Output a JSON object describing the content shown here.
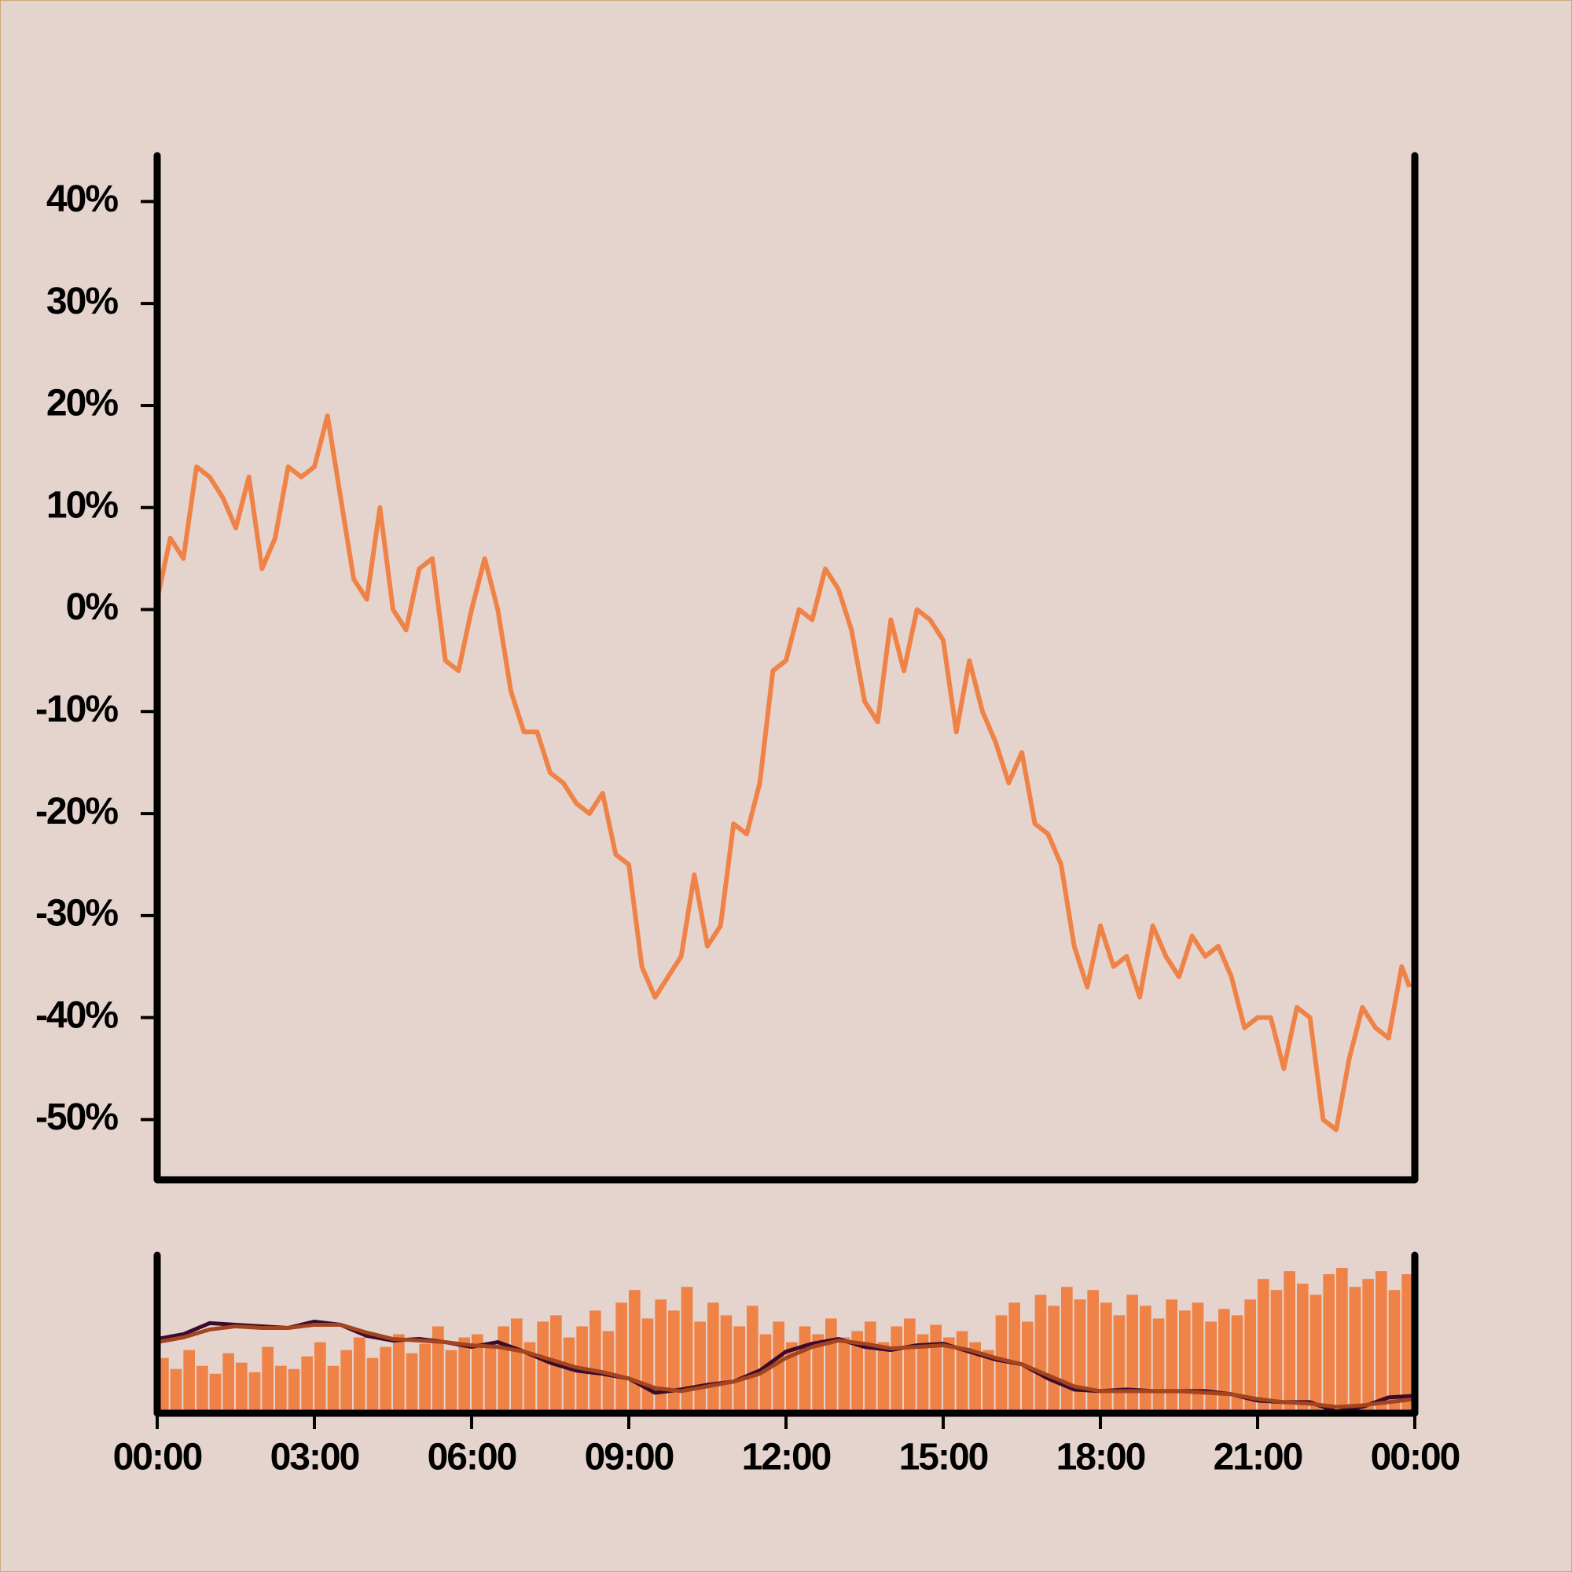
{
  "chart_data": [
    {
      "type": "line",
      "color": "#ef8347",
      "x": [
        0,
        0.25,
        0.5,
        0.75,
        1,
        1.25,
        1.5,
        1.75,
        2,
        2.25,
        2.5,
        2.75,
        3,
        3.25,
        3.5,
        3.75,
        4,
        4.25,
        4.5,
        4.75,
        5,
        5.25,
        5.5,
        5.75,
        6,
        6.25,
        6.5,
        6.75,
        7,
        7.25,
        7.5,
        7.75,
        8,
        8.25,
        8.5,
        8.75,
        9,
        9.25,
        9.5,
        9.75,
        10,
        10.25,
        10.5,
        10.75,
        11,
        11.25,
        11.5,
        11.75,
        12,
        12.25,
        12.5,
        12.75,
        13,
        13.25,
        13.5,
        13.75,
        14,
        14.25,
        14.5,
        14.75,
        15,
        15.25,
        15.5,
        15.75,
        16,
        16.25,
        16.5,
        16.75,
        17,
        17.25,
        17.5,
        17.75,
        18,
        18.25,
        18.5,
        18.75,
        19,
        19.25,
        19.5,
        19.75,
        20,
        20.25,
        20.5,
        20.75,
        21,
        21.25,
        21.5,
        21.75,
        22,
        22.25,
        22.5,
        22.75,
        23,
        23.25,
        23.5,
        23.75,
        23.9
      ],
      "values": [
        1,
        7,
        5,
        14,
        13,
        11,
        8,
        13,
        4,
        7,
        14,
        13,
        14,
        19,
        11,
        3,
        1,
        10,
        0,
        -2,
        4,
        5,
        -5,
        -6,
        0,
        5,
        0,
        -8,
        -12,
        -12,
        -16,
        -17,
        -19,
        -20,
        -18,
        -24,
        -25,
        -35,
        -38,
        -36,
        -34,
        -26,
        -33,
        -31,
        -21,
        -22,
        -17,
        -6,
        -5,
        0,
        -1,
        4,
        2,
        -2,
        -9,
        -11,
        -1,
        -6,
        0,
        -1,
        -3,
        -12,
        -5,
        -10,
        -13,
        -17,
        -14,
        -21,
        -22,
        -25,
        -33,
        -37,
        -31,
        -35,
        -34,
        -38,
        -31,
        -34,
        -36,
        -32,
        -34,
        -33,
        -36,
        -41,
        -40,
        -40,
        -45,
        -39,
        -40,
        -50,
        -51,
        -44,
        -39,
        -41,
        -42,
        -35,
        -37
      ],
      "xlim": [
        0,
        24
      ],
      "ylim": [
        -55.9,
        44.5
      ],
      "yticks": [
        {
          "value": 40,
          "label": "40%"
        },
        {
          "value": 30,
          "label": "30%"
        },
        {
          "value": 20,
          "label": "20%"
        },
        {
          "value": 10,
          "label": "10%"
        },
        {
          "value": 0,
          "label": "0%"
        },
        {
          "value": -10,
          "label": "-10%"
        },
        {
          "value": -20,
          "label": "-20%"
        },
        {
          "value": -30,
          "label": "-30%"
        },
        {
          "value": -40,
          "label": "-40%"
        },
        {
          "value": -50,
          "label": "-50%"
        }
      ]
    },
    {
      "type": "bar",
      "color": "#ef8347",
      "x": [
        0,
        0.25,
        0.5,
        0.75,
        1,
        1.25,
        1.5,
        1.75,
        2,
        2.25,
        2.5,
        2.75,
        3,
        3.25,
        3.5,
        3.75,
        4,
        4.25,
        4.5,
        4.75,
        5,
        5.25,
        5.5,
        5.75,
        6,
        6.25,
        6.5,
        6.75,
        7,
        7.25,
        7.5,
        7.75,
        8,
        8.25,
        8.5,
        8.75,
        9,
        9.25,
        9.5,
        9.75,
        10,
        10.25,
        10.5,
        10.75,
        11,
        11.25,
        11.5,
        11.75,
        12,
        12.25,
        12.5,
        12.75,
        13,
        13.25,
        13.5,
        13.75,
        14,
        14.25,
        14.5,
        14.75,
        15,
        15.25,
        15.5,
        15.75,
        16,
        16.25,
        16.5,
        16.75,
        17,
        17.25,
        17.5,
        17.75,
        18,
        18.25,
        18.5,
        18.75,
        19,
        19.25,
        19.5,
        19.75,
        20,
        20.25,
        20.5,
        20.75,
        21,
        21.25,
        21.5,
        21.75,
        22,
        22.25,
        22.5,
        22.75,
        23,
        23.25,
        23.5,
        23.75
      ],
      "values": [
        35,
        28,
        40,
        30,
        25,
        38,
        32,
        26,
        42,
        30,
        28,
        36,
        45,
        30,
        40,
        48,
        35,
        42,
        50,
        38,
        44,
        55,
        40,
        48,
        50,
        42,
        55,
        60,
        45,
        58,
        62,
        48,
        55,
        65,
        52,
        70,
        78,
        60,
        72,
        65,
        80,
        58,
        70,
        62,
        55,
        68,
        50,
        58,
        45,
        55,
        50,
        60,
        48,
        52,
        58,
        45,
        55,
        60,
        50,
        56,
        48,
        52,
        45,
        40,
        62,
        70,
        58,
        75,
        68,
        80,
        72,
        78,
        70,
        62,
        75,
        68,
        60,
        72,
        65,
        70,
        58,
        66,
        62,
        72,
        85,
        78,
        90,
        82,
        75,
        88,
        92,
        80,
        85,
        90,
        78,
        88
      ],
      "bar_width": 0.25,
      "series": [
        {
          "color": "#3a0b2c",
          "x": [
            0,
            0.5,
            1,
            1.5,
            2,
            2.5,
            3,
            3.5,
            4,
            4.5,
            5,
            5.5,
            6,
            6.5,
            7,
            7.5,
            8,
            8.5,
            9,
            9.5,
            10,
            10.5,
            11,
            11.5,
            12,
            12.5,
            13,
            13.5,
            14,
            14.5,
            15,
            15.5,
            16,
            16.5,
            17,
            17.5,
            18,
            18.5,
            19,
            19.5,
            20,
            20.5,
            21,
            21.5,
            22,
            22.5,
            23,
            23.5,
            24
          ],
          "values": [
            47,
            50,
            57,
            56,
            55,
            54,
            58,
            56,
            49,
            46,
            47,
            45,
            42,
            45,
            39,
            32,
            27,
            25,
            22,
            13,
            15,
            18,
            20,
            27,
            39,
            44,
            47,
            42,
            40,
            43,
            44,
            39,
            34,
            31,
            22,
            15,
            14,
            15,
            14,
            14,
            14,
            12,
            8,
            7,
            7,
            1,
            4,
            10,
            11
          ]
        },
        {
          "color": "#a4451f",
          "x": [
            0,
            0.5,
            1,
            1.5,
            2,
            2.5,
            3,
            3.5,
            4,
            4.5,
            5,
            5.5,
            6,
            6.5,
            7,
            7.5,
            8,
            8.5,
            9,
            9.5,
            10,
            10.5,
            11,
            11.5,
            12,
            12.5,
            13,
            13.5,
            14,
            14.5,
            15,
            15.5,
            16,
            16.5,
            17,
            17.5,
            18,
            18.5,
            19,
            19.5,
            20,
            20.5,
            21,
            21.5,
            22,
            22.5,
            23,
            23.5,
            24
          ],
          "values": [
            45,
            48,
            53,
            55,
            54,
            54,
            56,
            56,
            51,
            47,
            46,
            45,
            43,
            42,
            39,
            34,
            29,
            26,
            22,
            16,
            14,
            17,
            20,
            25,
            35,
            42,
            46,
            44,
            41,
            42,
            43,
            40,
            35,
            31,
            24,
            17,
            14,
            14,
            14,
            14,
            13,
            12,
            9,
            7,
            6,
            4,
            5,
            7,
            9
          ]
        }
      ],
      "xlim": [
        0,
        24
      ],
      "ylim": [
        0,
        100
      ],
      "xticks": [
        {
          "value": 0,
          "label": "00:00"
        },
        {
          "value": 3,
          "label": "03:00"
        },
        {
          "value": 6,
          "label": "06:00"
        },
        {
          "value": 9,
          "label": "09:00"
        },
        {
          "value": 12,
          "label": "12:00"
        },
        {
          "value": 15,
          "label": "15:00"
        },
        {
          "value": 18,
          "label": "18:00"
        },
        {
          "value": 21,
          "label": "21:00"
        },
        {
          "value": 24,
          "label": "00:00"
        }
      ]
    }
  ]
}
